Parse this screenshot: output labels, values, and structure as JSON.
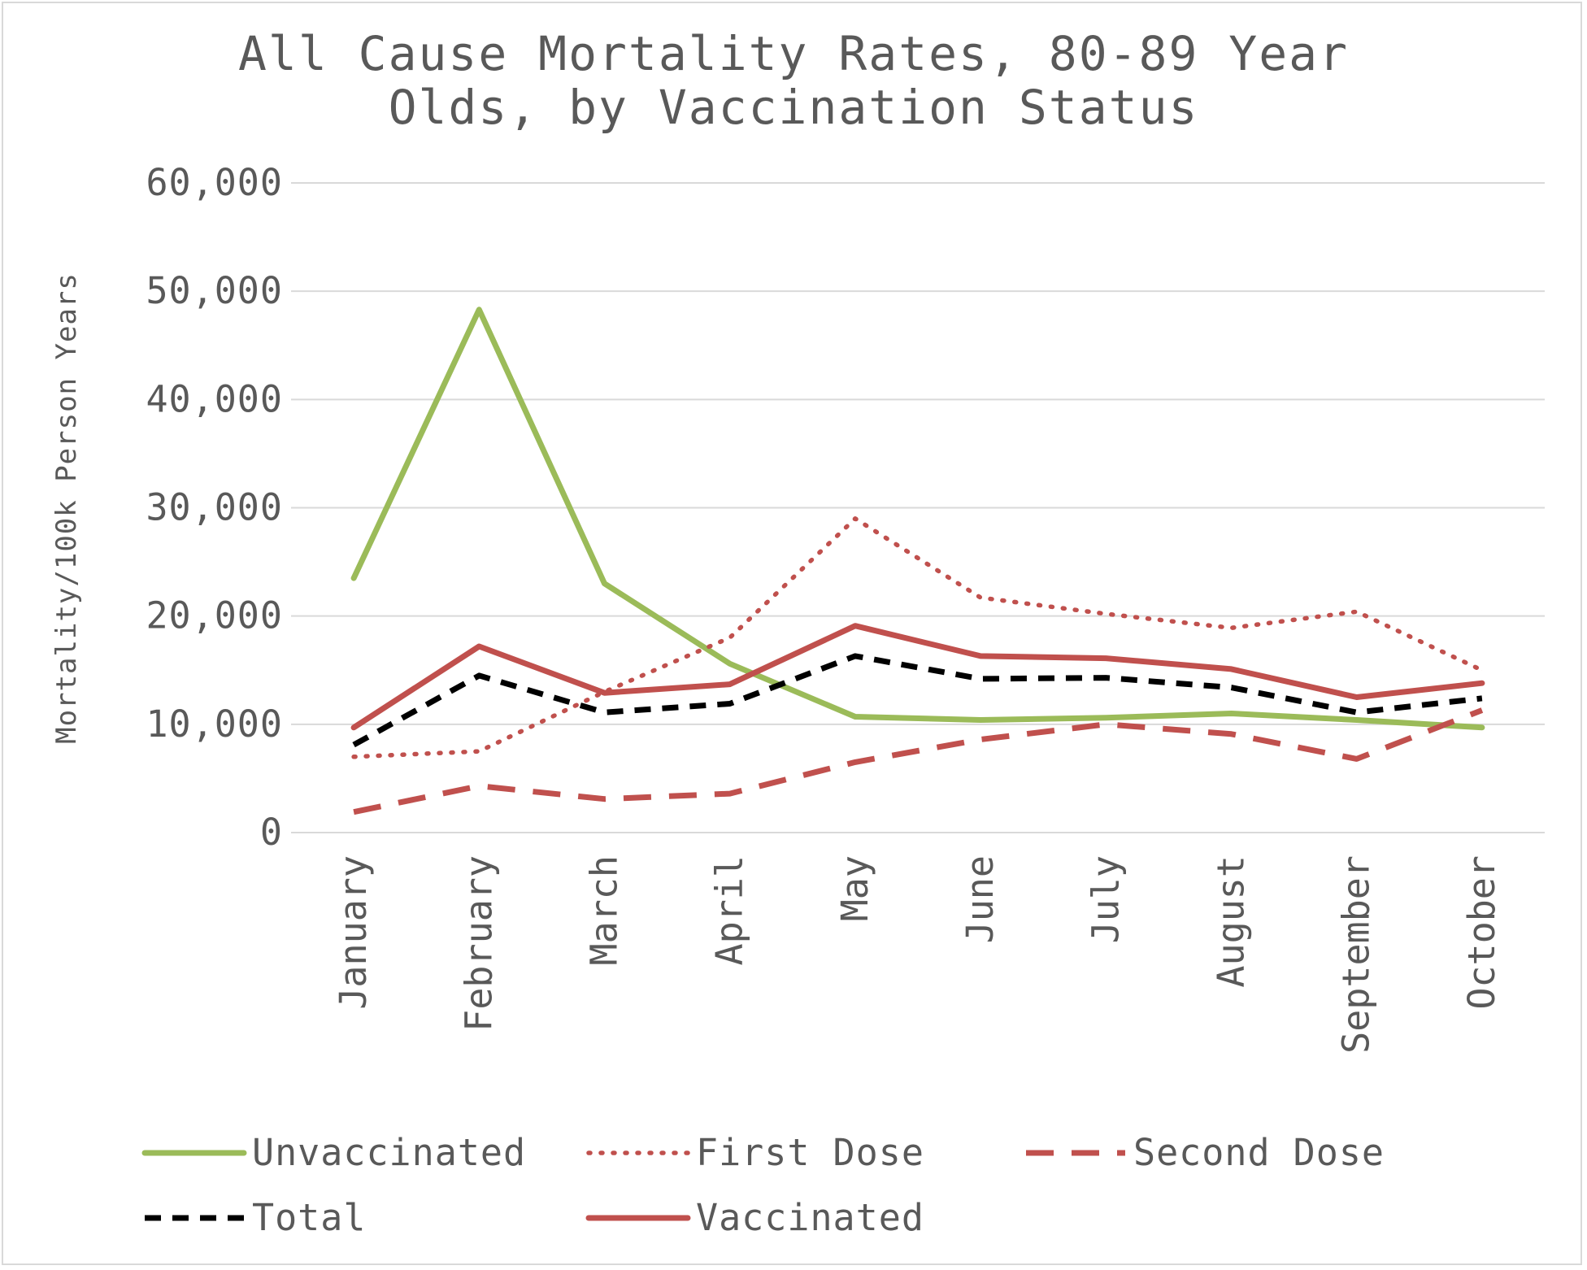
{
  "chart_data": {
    "type": "line",
    "title_line1": "All Cause Mortality Rates, 80-89 Year",
    "title_line2": "Olds, by Vaccination Status",
    "ylabel": "Mortality/100k Person Years",
    "xlabel": "",
    "ylim": [
      0,
      60000
    ],
    "y_ticks": [
      0,
      10000,
      20000,
      30000,
      40000,
      50000,
      60000
    ],
    "y_tick_labels": [
      "0",
      "10,000",
      "20,000",
      "30,000",
      "40,000",
      "50,000",
      "60,000"
    ],
    "grid": true,
    "legend_position": "bottom",
    "categories": [
      "January",
      "February",
      "March",
      "April",
      "May",
      "June",
      "July",
      "August",
      "September",
      "October"
    ],
    "series": [
      {
        "name": "Unvaccinated",
        "color": "#9bbb59",
        "style": "solid",
        "values": [
          23500,
          48300,
          23000,
          15600,
          10700,
          10400,
          10600,
          11000,
          10400,
          9700
        ]
      },
      {
        "name": "First Dose",
        "color": "#c0504d",
        "style": "dotted",
        "values": [
          7000,
          7500,
          13000,
          18000,
          29000,
          21700,
          20200,
          18900,
          20400,
          15000
        ]
      },
      {
        "name": "Second Dose",
        "color": "#c0504d",
        "style": "dashed",
        "values": [
          1900,
          4300,
          3100,
          3600,
          6500,
          8600,
          10000,
          9100,
          6800,
          11300
        ]
      },
      {
        "name": "Total",
        "color": "#000000",
        "style": "dashed-short",
        "values": [
          8100,
          14500,
          11100,
          11900,
          16300,
          14200,
          14300,
          13400,
          11100,
          12400
        ]
      },
      {
        "name": "Vaccinated",
        "color": "#c0504d",
        "style": "solid",
        "values": [
          9700,
          17200,
          12900,
          13700,
          19100,
          16300,
          16100,
          15100,
          12500,
          13800
        ]
      }
    ]
  }
}
